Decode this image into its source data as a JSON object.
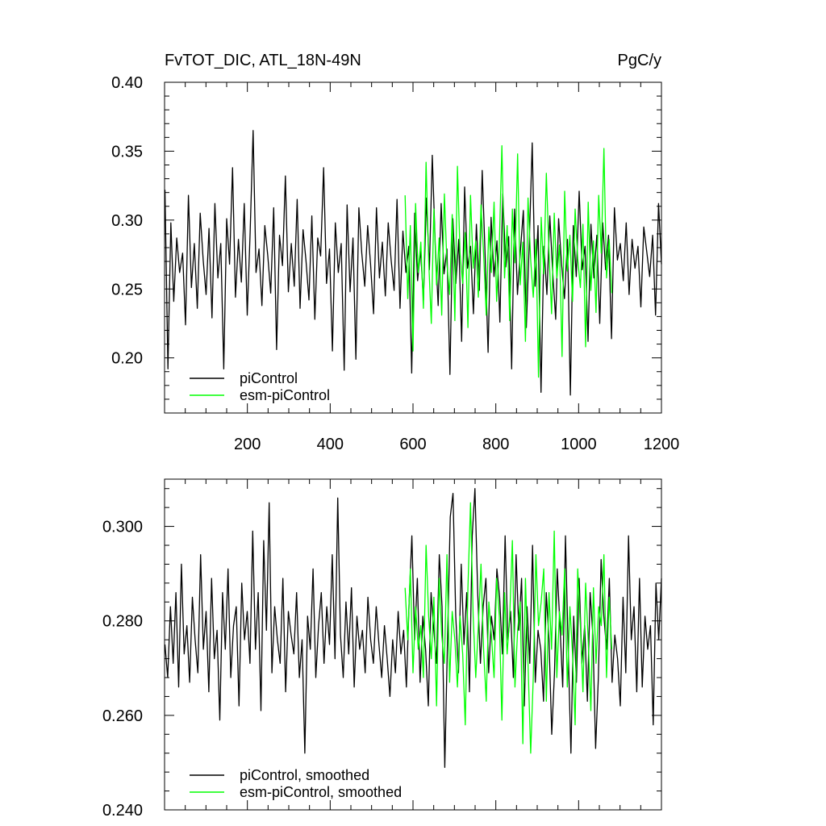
{
  "chart_data": [
    {
      "type": "line",
      "title": "FvTOT_DIC, ATL_18N-49N",
      "units": "PgC/y",
      "xlim": [
        0,
        1200
      ],
      "ylim": [
        0.16,
        0.4
      ],
      "x_ticks": [
        200,
        400,
        600,
        800,
        1000,
        1200
      ],
      "x_tick_labels": [
        "200",
        "400",
        "600",
        "800",
        "1000",
        "1200"
      ],
      "y_ticks": [
        0.2,
        0.25,
        0.3,
        0.35,
        0.4
      ],
      "y_tick_labels": [
        "0.20",
        "0.25",
        "0.30",
        "0.35",
        "0.40"
      ],
      "grid": false,
      "legend_position": "bottom-left",
      "series": [
        {
          "name": "piControl",
          "color": "#000000",
          "x_range": [
            1,
            1200
          ],
          "values": [
            0.322,
            0.192,
            0.298,
            0.241,
            0.287,
            0.262,
            0.276,
            0.224,
            0.318,
            0.251,
            0.283,
            0.236,
            0.305,
            0.271,
            0.246,
            0.294,
            0.229,
            0.312,
            0.258,
            0.283,
            0.192,
            0.301,
            0.268,
            0.338,
            0.244,
            0.286,
            0.255,
            0.312,
            0.231,
            0.291,
            0.365,
            0.262,
            0.279,
            0.238,
            0.296,
            0.274,
            0.247,
            0.309,
            0.206,
            0.289,
            0.267,
            0.332,
            0.248,
            0.283,
            0.252,
            0.315,
            0.236,
            0.293,
            0.271,
            0.242,
            0.303,
            0.228,
            0.287,
            0.274,
            0.338,
            0.254,
            0.279,
            0.205,
            0.298,
            0.262,
            0.283,
            0.191,
            0.311,
            0.248,
            0.287,
            0.199,
            0.309,
            0.276,
            0.252,
            0.296,
            0.268,
            0.232,
            0.309,
            0.258,
            0.284,
            0.245,
            0.298,
            0.271,
            0.249,
            0.315,
            0.236,
            0.292,
            0.262,
            0.281,
            0.189,
            0.305,
            0.256,
            0.278,
            0.242,
            0.316,
            0.264,
            0.347,
            0.282,
            0.238,
            0.312,
            0.261,
            0.279,
            0.188,
            0.301,
            0.254,
            0.286,
            0.212,
            0.324,
            0.265,
            0.281,
            0.232,
            0.297,
            0.249,
            0.336,
            0.273,
            0.204,
            0.302,
            0.259,
            0.285,
            0.226,
            0.319,
            0.266,
            0.288,
            0.192,
            0.308,
            0.246,
            0.278,
            0.307,
            0.222,
            0.283,
            0.356,
            0.252,
            0.296,
            0.175,
            0.281,
            0.246,
            0.303,
            0.262,
            0.228,
            0.301,
            0.268,
            0.243,
            0.286,
            0.173,
            0.296,
            0.259,
            0.321,
            0.264,
            0.281,
            0.212,
            0.297,
            0.258,
            0.289,
            0.225,
            0.298,
            0.264,
            0.289,
            0.214,
            0.309,
            0.271,
            0.283,
            0.256,
            0.298,
            0.246,
            0.286,
            0.265,
            0.281,
            0.237,
            0.295,
            0.277,
            0.259,
            0.289,
            0.231,
            0.312,
            0.268
          ]
        },
        {
          "name": "esm-piControl",
          "color": "#00ff00",
          "x_range": [
            581,
            1080
          ],
          "values": [
            0.318,
            0.243,
            0.296,
            0.205,
            0.312,
            0.262,
            0.284,
            0.236,
            0.342,
            0.271,
            0.225,
            0.308,
            0.253,
            0.287,
            0.231,
            0.319,
            0.268,
            0.246,
            0.304,
            0.227,
            0.339,
            0.276,
            0.254,
            0.291,
            0.222,
            0.318,
            0.265,
            0.285,
            0.244,
            0.311,
            0.276,
            0.231,
            0.295,
            0.262,
            0.313,
            0.241,
            0.282,
            0.354,
            0.258,
            0.296,
            0.227,
            0.308,
            0.269,
            0.348,
            0.253,
            0.284,
            0.212,
            0.316,
            0.271,
            0.244,
            0.286,
            0.186,
            0.302,
            0.261,
            0.334,
            0.277,
            0.232,
            0.305,
            0.258,
            0.282,
            0.201,
            0.321,
            0.263,
            0.289,
            0.241,
            0.308,
            0.272,
            0.251,
            0.297,
            0.208,
            0.313,
            0.249,
            0.285,
            0.233,
            0.318,
            0.276,
            0.352,
            0.258,
            0.286,
            0.247
          ]
        }
      ]
    },
    {
      "type": "line",
      "title": "",
      "xlim": [
        0,
        1200
      ],
      "ylim": [
        0.24,
        0.31
      ],
      "y_ticks": [
        0.24,
        0.26,
        0.28,
        0.3
      ],
      "y_tick_labels": [
        "0.240",
        "0.260",
        "0.280",
        "0.300"
      ],
      "grid": false,
      "legend_position": "bottom-left",
      "series": [
        {
          "name": "piControl, smoothed",
          "color": "#000000",
          "x_range": [
            1,
            1200
          ],
          "values": [
            0.275,
            0.268,
            0.283,
            0.271,
            0.286,
            0.266,
            0.292,
            0.273,
            0.279,
            0.267,
            0.285,
            0.276,
            0.269,
            0.294,
            0.274,
            0.282,
            0.265,
            0.289,
            0.272,
            0.278,
            0.259,
            0.286,
            0.274,
            0.291,
            0.268,
            0.279,
            0.283,
            0.262,
            0.288,
            0.276,
            0.282,
            0.271,
            0.299,
            0.274,
            0.286,
            0.261,
            0.297,
            0.278,
            0.305,
            0.269,
            0.283,
            0.276,
            0.271,
            0.289,
            0.265,
            0.282,
            0.277,
            0.273,
            0.286,
            0.268,
            0.276,
            0.252,
            0.281,
            0.274,
            0.291,
            0.268,
            0.279,
            0.286,
            0.271,
            0.283,
            0.275,
            0.294,
            0.272,
            0.306,
            0.277,
            0.268,
            0.284,
            0.273,
            0.287,
            0.266,
            0.281,
            0.274,
            0.278,
            0.269,
            0.285,
            0.276,
            0.271,
            0.283,
            0.275,
            0.268,
            0.279,
            0.272,
            0.264,
            0.276,
            0.269,
            0.282,
            0.273,
            0.278,
            0.266,
            0.284,
            0.298,
            0.276,
            0.289,
            0.267,
            0.281,
            0.274,
            0.262,
            0.286,
            0.278,
            0.271,
            0.294,
            0.283,
            0.249,
            0.276,
            0.302,
            0.307,
            0.281,
            0.269,
            0.292,
            0.275,
            0.286,
            0.265,
            0.298,
            0.308,
            0.286,
            0.271,
            0.283,
            0.289,
            0.269,
            0.281,
            0.276,
            0.291,
            0.285,
            0.273,
            0.298,
            0.276,
            0.282,
            0.268,
            0.294,
            0.278,
            0.289,
            0.262,
            0.283,
            0.271,
            0.296,
            0.267,
            0.278,
            0.274,
            0.263,
            0.286,
            0.276,
            0.256,
            0.269,
            0.291,
            0.279,
            0.266,
            0.298,
            0.274,
            0.252,
            0.281,
            0.267,
            0.289,
            0.271,
            0.279,
            0.263,
            0.286,
            0.277,
            0.253,
            0.268,
            0.293,
            0.281,
            0.274,
            0.289,
            0.267,
            0.277,
            0.272,
            0.262,
            0.285,
            0.269,
            0.298,
            0.276,
            0.283,
            0.265,
            0.289,
            0.266,
            0.281,
            0.274,
            0.279,
            0.258,
            0.288,
            0.276,
            0.289
          ]
        },
        {
          "name": "esm-piControl, smoothed",
          "color": "#00ff00",
          "x_range": [
            581,
            1080
          ],
          "values": [
            0.287,
            0.276,
            0.291,
            0.269,
            0.283,
            0.274,
            0.279,
            0.268,
            0.296,
            0.281,
            0.272,
            0.285,
            0.262,
            0.289,
            0.277,
            0.271,
            0.294,
            0.267,
            0.282,
            0.276,
            0.266,
            0.281,
            0.273,
            0.258,
            0.287,
            0.305,
            0.281,
            0.268,
            0.279,
            0.292,
            0.274,
            0.263,
            0.284,
            0.277,
            0.268,
            0.289,
            0.281,
            0.259,
            0.286,
            0.273,
            0.281,
            0.297,
            0.266,
            0.278,
            0.284,
            0.254,
            0.289,
            0.271,
            0.252,
            0.268,
            0.294,
            0.279,
            0.284,
            0.291,
            0.263,
            0.286,
            0.274,
            0.299,
            0.268,
            0.282,
            0.277,
            0.291,
            0.266,
            0.283,
            0.273,
            0.258,
            0.291,
            0.279,
            0.265,
            0.288,
            0.276,
            0.261,
            0.287,
            0.271,
            0.283,
            0.279,
            0.294,
            0.268,
            0.285,
            0.274
          ]
        }
      ]
    }
  ]
}
